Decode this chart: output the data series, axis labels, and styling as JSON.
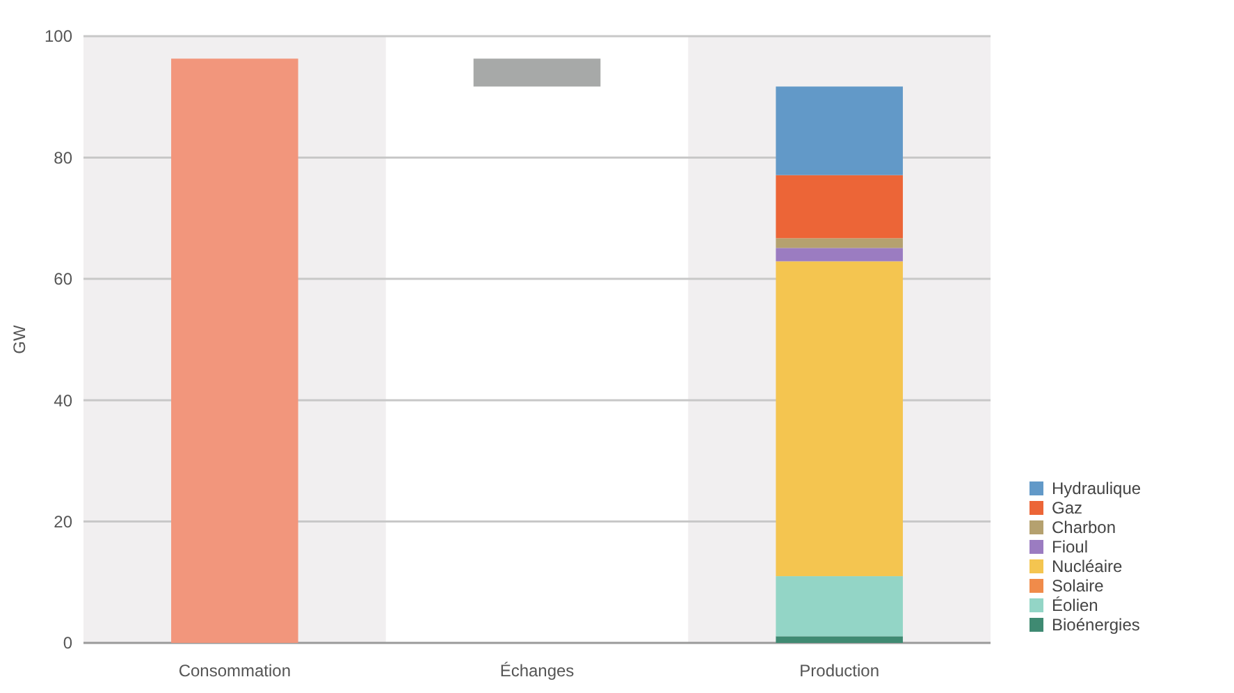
{
  "chart_data": {
    "type": "bar",
    "ylabel": "GW",
    "categories": [
      "Consommation",
      "Échanges",
      "Production"
    ],
    "stacked": true,
    "ylim": [
      0,
      100
    ],
    "yticks": [
      0,
      20,
      40,
      60,
      80,
      100
    ],
    "grid": "y",
    "legend": "right",
    "series": [
      {
        "color": "#f2967c",
        "values": [
          96.3,
          null,
          null
        ]
      },
      {
        "color": "#a7a9a8",
        "values": [
          null,
          4.6,
          null
        ],
        "base": [
          null,
          91.7,
          null
        ]
      },
      {
        "name": "Bioénergies",
        "color": "#3f8a72",
        "values": [
          null,
          null,
          1.1
        ]
      },
      {
        "name": "Éolien",
        "color": "#93d5c6",
        "values": [
          null,
          null,
          9.9
        ]
      },
      {
        "name": "Solaire",
        "color": "#f08b4a",
        "values": [
          null,
          null,
          0
        ]
      },
      {
        "name": "Nucléaire",
        "color": "#f4c550",
        "values": [
          null,
          null,
          51.9
        ]
      },
      {
        "name": "Fioul",
        "color": "#9b7cc1",
        "values": [
          null,
          null,
          2.2
        ]
      },
      {
        "name": "Charbon",
        "color": "#b5a16f",
        "values": [
          null,
          null,
          1.6
        ]
      },
      {
        "name": "Gaz",
        "color": "#ec6537",
        "values": [
          null,
          null,
          10.4
        ]
      },
      {
        "name": "Hydraulique",
        "color": "#6299c8",
        "values": [
          null,
          null,
          14.6
        ]
      }
    ]
  }
}
